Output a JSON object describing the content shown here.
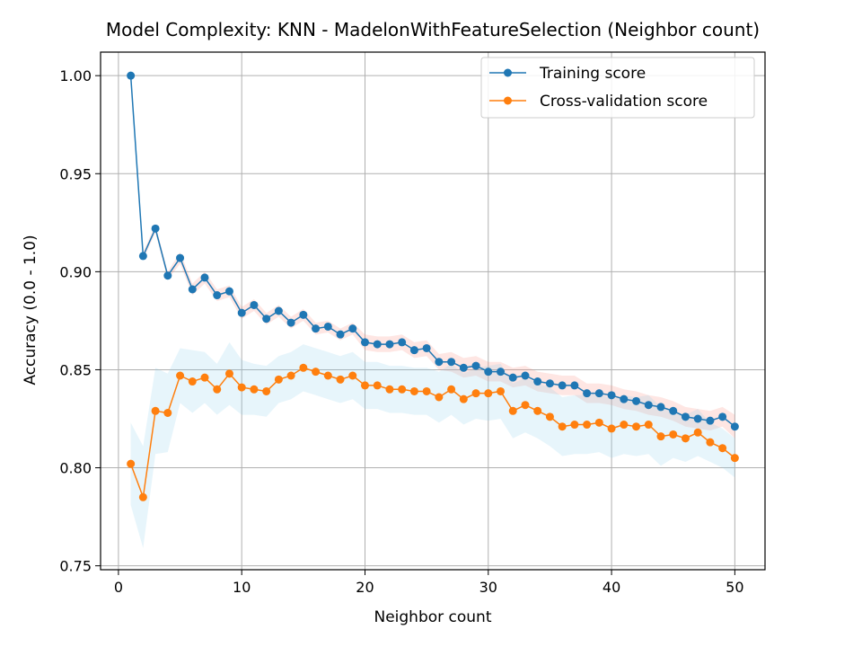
{
  "chart_data": {
    "type": "line",
    "title": "Model Complexity: KNN - MadelonWithFeatureSelection (Neighbor count)",
    "xlabel": "Neighbor count",
    "ylabel": "Accuracy (0.0 - 1.0)",
    "xlim": [
      -1.45,
      52.45
    ],
    "ylim": [
      0.748,
      1.012
    ],
    "xticks": [
      0,
      10,
      20,
      30,
      40,
      50
    ],
    "yticks": [
      0.75,
      0.8,
      0.85,
      0.9,
      0.95,
      1.0
    ],
    "xtick_labels": [
      "0",
      "10",
      "20",
      "30",
      "40",
      "50"
    ],
    "ytick_labels": [
      "0.75",
      "0.80",
      "0.85",
      "0.90",
      "0.95",
      "1.00"
    ],
    "grid": true,
    "legend_position": "upper-right",
    "x": [
      1,
      2,
      3,
      4,
      5,
      6,
      7,
      8,
      9,
      10,
      11,
      12,
      13,
      14,
      15,
      16,
      17,
      18,
      19,
      20,
      21,
      22,
      23,
      24,
      25,
      26,
      27,
      28,
      29,
      30,
      31,
      32,
      33,
      34,
      35,
      36,
      37,
      38,
      39,
      40,
      41,
      42,
      43,
      44,
      45,
      46,
      47,
      48,
      49,
      50
    ],
    "series": [
      {
        "name": "Training score",
        "color": "#1f77b4",
        "band_color": "#fa8072",
        "values": [
          1.0,
          0.908,
          0.922,
          0.898,
          0.907,
          0.891,
          0.897,
          0.888,
          0.89,
          0.879,
          0.883,
          0.876,
          0.88,
          0.874,
          0.878,
          0.871,
          0.872,
          0.868,
          0.871,
          0.864,
          0.863,
          0.863,
          0.864,
          0.86,
          0.861,
          0.854,
          0.854,
          0.851,
          0.852,
          0.849,
          0.849,
          0.846,
          0.847,
          0.844,
          0.843,
          0.842,
          0.842,
          0.838,
          0.838,
          0.837,
          0.835,
          0.834,
          0.832,
          0.831,
          0.829,
          0.826,
          0.825,
          0.824,
          0.826,
          0.821
        ],
        "std": [
          0.0,
          0.002,
          0.002,
          0.002,
          0.003,
          0.003,
          0.003,
          0.003,
          0.003,
          0.003,
          0.003,
          0.003,
          0.003,
          0.003,
          0.003,
          0.003,
          0.003,
          0.003,
          0.003,
          0.004,
          0.004,
          0.004,
          0.004,
          0.004,
          0.004,
          0.004,
          0.005,
          0.005,
          0.005,
          0.005,
          0.005,
          0.005,
          0.005,
          0.005,
          0.005,
          0.005,
          0.005,
          0.005,
          0.005,
          0.005,
          0.005,
          0.005,
          0.005,
          0.005,
          0.005,
          0.005,
          0.005,
          0.005,
          0.005,
          0.006
        ]
      },
      {
        "name": "Cross-validation score",
        "color": "#ff7f0e",
        "band_color": "#87ceeb",
        "values": [
          0.802,
          0.785,
          0.829,
          0.828,
          0.847,
          0.844,
          0.846,
          0.84,
          0.848,
          0.841,
          0.84,
          0.839,
          0.845,
          0.847,
          0.851,
          0.849,
          0.847,
          0.845,
          0.847,
          0.842,
          0.842,
          0.84,
          0.84,
          0.839,
          0.839,
          0.836,
          0.84,
          0.835,
          0.838,
          0.838,
          0.839,
          0.829,
          0.832,
          0.829,
          0.826,
          0.821,
          0.822,
          0.822,
          0.823,
          0.82,
          0.822,
          0.821,
          0.822,
          0.816,
          0.817,
          0.815,
          0.818,
          0.813,
          0.81,
          0.805
        ],
        "std": [
          0.021,
          0.026,
          0.022,
          0.02,
          0.014,
          0.016,
          0.013,
          0.013,
          0.016,
          0.014,
          0.013,
          0.013,
          0.012,
          0.012,
          0.012,
          0.012,
          0.012,
          0.012,
          0.012,
          0.012,
          0.012,
          0.012,
          0.012,
          0.012,
          0.012,
          0.013,
          0.013,
          0.013,
          0.013,
          0.014,
          0.014,
          0.014,
          0.014,
          0.014,
          0.015,
          0.015,
          0.015,
          0.015,
          0.015,
          0.015,
          0.015,
          0.015,
          0.015,
          0.015,
          0.012,
          0.012,
          0.012,
          0.01,
          0.01,
          0.01
        ]
      }
    ]
  }
}
